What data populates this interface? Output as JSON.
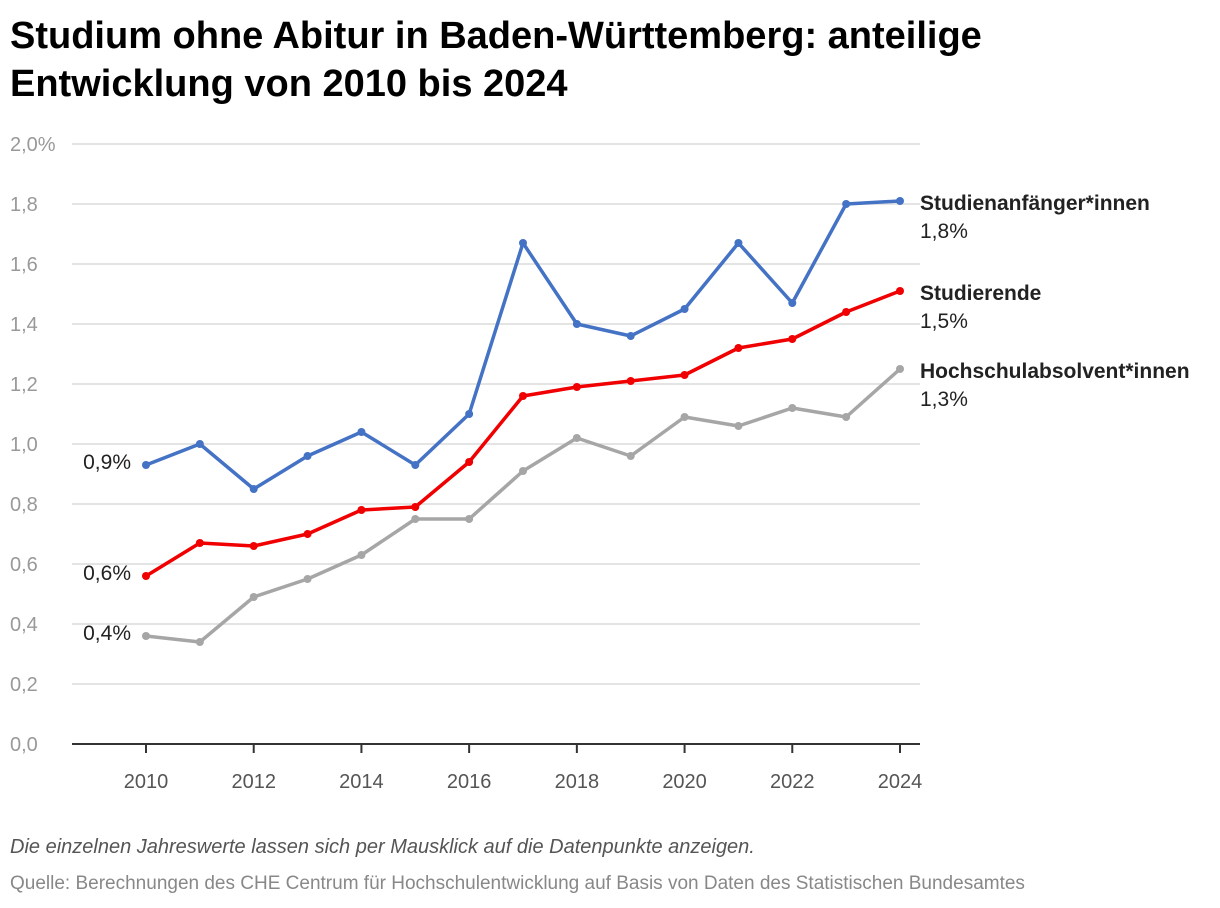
{
  "header": {
    "title": "Studium ohne Abitur in Baden-Württemberg: anteilige Entwicklung von 2010 bis 2024"
  },
  "footer": {
    "note": "Die einzelnen Jahreswerte lassen sich per Mausklick auf die Datenpunkte anzeigen.",
    "source": "Quelle: Berechnungen des CHE Centrum für Hochschulentwicklung auf Basis von Daten des Statistischen Bundesamtes"
  },
  "chart_data": {
    "type": "line",
    "title": "Studium ohne Abitur in Baden-Württemberg: anteilige Entwicklung von 2010 bis 2024",
    "xlabel": "",
    "ylabel": "",
    "x": [
      2010,
      2011,
      2012,
      2013,
      2014,
      2015,
      2016,
      2017,
      2018,
      2019,
      2020,
      2021,
      2022,
      2023,
      2024
    ],
    "x_ticks": [
      "2010",
      "2012",
      "2014",
      "2016",
      "2018",
      "2020",
      "2022",
      "2024"
    ],
    "y_ticks": [
      "0,0",
      "0,2",
      "0,4",
      "0,6",
      "0,8",
      "1,0",
      "1,2",
      "1,4",
      "1,6",
      "1,8",
      "2,0%"
    ],
    "ylim": [
      0,
      2.0
    ],
    "grid": true,
    "series": [
      {
        "name": "Studienanfänger*innen",
        "color": "#4472c4",
        "start_label": "0,9%",
        "end_label": "1,8%",
        "values": [
          0.93,
          1.0,
          0.85,
          0.96,
          1.04,
          0.93,
          1.1,
          1.67,
          1.4,
          1.36,
          1.45,
          1.67,
          1.47,
          1.8,
          1.81
        ]
      },
      {
        "name": "Studierende",
        "color": "#f00000",
        "start_label": "0,6%",
        "end_label": "1,5%",
        "values": [
          0.56,
          0.67,
          0.66,
          0.7,
          0.78,
          0.79,
          0.94,
          1.16,
          1.19,
          1.21,
          1.23,
          1.32,
          1.35,
          1.44,
          1.51
        ]
      },
      {
        "name": "Hochschulabsolvent*innen",
        "color": "#a6a6a6",
        "start_label": "0,4%",
        "end_label": "1,3%",
        "values": [
          0.36,
          0.34,
          0.49,
          0.55,
          0.63,
          0.75,
          0.75,
          0.91,
          1.02,
          0.96,
          1.09,
          1.06,
          1.12,
          1.09,
          1.25
        ]
      }
    ]
  }
}
